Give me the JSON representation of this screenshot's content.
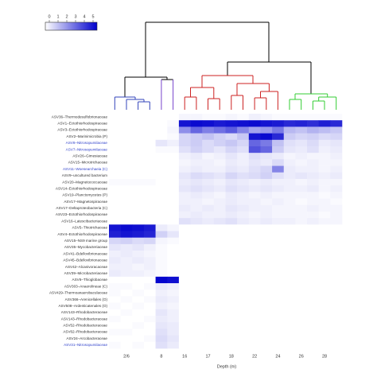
{
  "chart_data": {
    "type": "heatmap",
    "x_label": "Depth (m)",
    "columns": [
      null,
      "2/6",
      null,
      null,
      "8",
      null,
      "16",
      null,
      "17",
      null,
      "18",
      null,
      "22",
      null,
      "24",
      null,
      "26",
      null,
      "28",
      null
    ],
    "rows": [
      "ASV36–Thermodesulfobrionaceae",
      "ASV1–Ectothiorhodospiraceae",
      "ASV3–Ectothiorhodospiraceae",
      "ASV2–Marinimicrobia (P)",
      "ASV8–Nitrosopumilaceae",
      "ASV7–Nitrosopumilaceae",
      "ASV26–Gimesiaceae",
      "ASV15–Microtrichaceae",
      "ASV11–Woesearchaeia (C)",
      "ASV9–uncultured bacterium",
      "ASV20–Magnetococcaceae",
      "ASV14–Ectothiorhodospiraceae",
      "ASV19–Planctomycetes (P)",
      "ASV17–Magnetospiraceae",
      "ASV17–Deltaproteobacteria (C)",
      "ASV23–Ectothiorhodospiraceae",
      "ASV16–Latescibacteriaceae",
      "ASV5–Thiotrichaceae",
      "ASV4–Ectothiorhodospiraceae",
      "ASV15–NS9 marine group",
      "ASV35–Mycobacteriaceae",
      "ASV41–Bdellovibrionaceae",
      "ASV45–Bdellovibrionaceae",
      "ASV42–Alcanivoracaceae",
      "ASV39–Microbacteriaceae",
      "ASV6–Thioglobaceae",
      "ASV303–Anaerolineae (C)",
      "ASV429–Thermoanaerobaculaceae",
      "ASV366–Arenicellales (O)",
      "ASV508–Ardenticatenales (O)",
      "ASV143–Rhodobacteraceae",
      "ASV143–Rhodobacteraceae",
      "ASV52–Rhodobacteraceae",
      "ASV62–Rhodobacteraceae",
      "ASV24–Arcobacteraceae",
      "ASV31–Nitrosopumilaceae"
    ],
    "row_label_colors": [
      "#333333",
      "#333333",
      "#333333",
      "#333333",
      "#3344cc",
      "#3344cc",
      "#333333",
      "#333333",
      "#3344cc",
      "#333333",
      "#333333",
      "#333333",
      "#333333",
      "#333333",
      "#333333",
      "#333333",
      "#333333",
      "#333333",
      "#333333",
      "#333333",
      "#333333",
      "#333333",
      "#333333",
      "#333333",
      "#333333",
      "#333333",
      "#333333",
      "#333333",
      "#333333",
      "#333333",
      "#333333",
      "#333333",
      "#333333",
      "#333333",
      "#333333",
      "#3344cc"
    ],
    "values": [
      [
        0,
        0,
        0,
        0,
        0,
        0,
        0.2,
        0.2,
        0.1,
        0.1,
        0.2,
        0.1,
        0.3,
        0.2,
        0.1,
        0.1,
        0.1,
        0.1,
        0.1,
        0.1
      ],
      [
        0,
        0,
        0,
        0,
        0,
        0.1,
        4.6,
        4.8,
        4.7,
        4.5,
        4.6,
        4.7,
        4.8,
        4.6,
        4.5,
        4.2,
        4.3,
        4.1,
        4.4,
        4.2
      ],
      [
        0,
        0,
        0,
        0,
        0,
        0.2,
        2.2,
        3.0,
        2.5,
        2.8,
        3.2,
        2.4,
        1.8,
        2.0,
        2.6,
        1.4,
        1.2,
        1.5,
        1.3,
        1.1
      ],
      [
        0,
        0,
        0,
        0,
        0,
        0.1,
        0.8,
        1.0,
        1.2,
        0.9,
        0.7,
        1.1,
        4.6,
        4.8,
        4.2,
        1.0,
        0.8,
        0.9,
        0.7,
        0.8
      ],
      [
        0,
        0,
        0,
        0,
        0.5,
        0.3,
        0.8,
        1.0,
        0.7,
        0.9,
        1.1,
        0.8,
        3.0,
        2.6,
        1.2,
        0.6,
        0.5,
        0.7,
        0.4,
        0.5
      ],
      [
        0,
        0,
        0,
        0,
        0.1,
        0.1,
        0.6,
        0.9,
        0.7,
        0.5,
        0.8,
        0.6,
        3.4,
        3.0,
        1.0,
        0.5,
        0.4,
        0.6,
        0.3,
        0.4
      ],
      [
        0,
        0,
        0,
        0,
        0,
        0,
        0.3,
        0.4,
        0.2,
        0.3,
        0.5,
        0.3,
        0.6,
        0.5,
        0.4,
        0.2,
        0.3,
        0.2,
        0.2,
        0.3
      ],
      [
        0,
        0,
        0,
        0,
        0,
        0,
        0.2,
        0.3,
        0.3,
        0.2,
        0.4,
        0.3,
        0.5,
        0.4,
        0.7,
        0.3,
        0.2,
        0.3,
        0.2,
        0.2
      ],
      [
        0,
        0,
        0,
        0,
        0,
        0,
        0.3,
        0.4,
        0.3,
        0.3,
        0.5,
        0.4,
        0.6,
        0.8,
        2.4,
        0.4,
        0.3,
        0.3,
        0.2,
        0.3
      ],
      [
        0,
        0,
        0,
        0,
        0,
        0,
        0.5,
        0.7,
        0.6,
        0.5,
        0.8,
        0.6,
        0.7,
        0.9,
        0.6,
        0.4,
        0.5,
        0.4,
        0.3,
        0.4
      ],
      [
        0.1,
        0.1,
        0.1,
        0.1,
        0,
        0,
        0.4,
        0.5,
        0.4,
        0.3,
        0.5,
        0.4,
        0.3,
        0.4,
        0.3,
        0.3,
        0.2,
        0.3,
        0.2,
        0.2
      ],
      [
        0,
        0,
        0,
        0,
        0,
        0,
        0.5,
        0.6,
        0.5,
        0.4,
        0.6,
        0.5,
        0.4,
        0.5,
        0.4,
        0.3,
        0.3,
        0.4,
        0.2,
        0.3
      ],
      [
        0,
        0,
        0,
        0,
        0,
        0,
        0.3,
        0.4,
        0.3,
        0.2,
        0.4,
        0.3,
        0.2,
        0.3,
        0.2,
        0.2,
        0.2,
        0.2,
        0.1,
        0.2
      ],
      [
        0,
        0,
        0,
        0,
        0,
        0,
        0.3,
        0.3,
        0.2,
        0.3,
        0.4,
        0.3,
        0.3,
        0.2,
        0.3,
        0.2,
        0.1,
        0.2,
        0.2,
        0.1
      ],
      [
        0,
        0,
        0,
        0,
        0,
        0,
        0.4,
        0.3,
        0.4,
        0.3,
        0.5,
        0.4,
        0.3,
        0.3,
        0.2,
        0.2,
        0.2,
        0.3,
        0.2,
        0.2
      ],
      [
        0,
        0,
        0,
        0,
        0,
        0,
        0.3,
        0.4,
        0.3,
        0.3,
        0.4,
        0.3,
        0.2,
        0.3,
        0.2,
        0.2,
        0.2,
        0.2,
        0.1,
        0.2
      ],
      [
        0,
        0,
        0,
        0,
        0,
        0,
        0.6,
        0.5,
        0.4,
        0.5,
        0.6,
        0.4,
        0.3,
        0.4,
        0.3,
        0.3,
        0.2,
        0.3,
        0.2,
        0.2
      ],
      [
        4.6,
        4.8,
        4.7,
        4.5,
        0.4,
        0.2,
        0,
        0,
        0,
        0,
        0,
        0,
        0,
        0,
        0,
        0,
        0,
        0,
        0,
        0
      ],
      [
        4.4,
        4.6,
        4.5,
        4.3,
        0.9,
        0.5,
        0,
        0,
        0,
        0,
        0,
        0,
        0,
        0,
        0,
        0,
        0,
        0,
        0,
        0
      ],
      [
        0.8,
        0.9,
        0.7,
        0.8,
        0.2,
        0.1,
        0,
        0,
        0,
        0,
        0,
        0,
        0,
        0,
        0,
        0,
        0,
        0,
        0,
        0
      ],
      [
        0.5,
        0.4,
        0.5,
        0.3,
        0.1,
        0,
        0,
        0,
        0,
        0,
        0,
        0,
        0,
        0,
        0,
        0,
        0,
        0,
        0,
        0
      ],
      [
        0.3,
        0.4,
        0.3,
        0.2,
        0.1,
        0,
        0,
        0,
        0,
        0,
        0,
        0,
        0,
        0,
        0,
        0,
        0,
        0,
        0,
        0
      ],
      [
        0.4,
        0.3,
        0.4,
        0.3,
        0.1,
        0,
        0,
        0,
        0,
        0,
        0,
        0,
        0,
        0,
        0,
        0,
        0,
        0,
        0,
        0
      ],
      [
        0.3,
        0.3,
        0.2,
        0.3,
        0.1,
        0,
        0,
        0,
        0,
        0,
        0,
        0,
        0,
        0,
        0,
        0,
        0,
        0,
        0,
        0
      ],
      [
        0.4,
        0.3,
        0.3,
        0.2,
        0.1,
        0,
        0,
        0,
        0,
        0,
        0,
        0,
        0,
        0,
        0,
        0,
        0,
        0,
        0,
        0
      ],
      [
        0,
        0,
        0,
        0,
        4.9,
        4.7,
        0,
        0,
        0,
        0,
        0,
        0,
        0,
        0,
        0,
        0,
        0,
        0,
        0,
        0
      ],
      [
        0.1,
        0.1,
        0,
        0.1,
        0.4,
        0.3,
        0,
        0,
        0,
        0,
        0,
        0,
        0,
        0,
        0,
        0,
        0,
        0,
        0,
        0
      ],
      [
        0.1,
        0,
        0.1,
        0,
        0.3,
        0.2,
        0,
        0,
        0,
        0,
        0,
        0,
        0,
        0,
        0,
        0,
        0,
        0,
        0,
        0
      ],
      [
        0,
        0.1,
        0,
        0.1,
        0.4,
        0.3,
        0,
        0,
        0,
        0,
        0,
        0,
        0,
        0,
        0,
        0,
        0,
        0,
        0,
        0
      ],
      [
        0.1,
        0,
        0.1,
        0,
        0.3,
        0.2,
        0,
        0,
        0,
        0,
        0,
        0,
        0,
        0,
        0,
        0,
        0,
        0,
        0,
        0
      ],
      [
        0,
        0.1,
        0,
        0,
        0.5,
        0.3,
        0,
        0,
        0,
        0,
        0,
        0,
        0,
        0,
        0,
        0,
        0,
        0,
        0,
        0
      ],
      [
        0.1,
        0,
        0,
        0.1,
        0.4,
        0.3,
        0,
        0,
        0,
        0,
        0,
        0,
        0,
        0,
        0,
        0,
        0,
        0,
        0,
        0
      ],
      [
        0,
        0,
        0.1,
        0,
        0.5,
        0.4,
        0,
        0,
        0,
        0,
        0,
        0,
        0,
        0,
        0,
        0,
        0,
        0,
        0,
        0
      ],
      [
        0.1,
        0.1,
        0,
        0,
        0.6,
        0.4,
        0,
        0,
        0,
        0,
        0,
        0,
        0,
        0,
        0,
        0,
        0,
        0,
        0,
        0
      ],
      [
        0,
        0,
        0,
        0.1,
        0.7,
        0.5,
        0,
        0,
        0,
        0,
        0,
        0,
        0,
        0,
        0,
        0,
        0,
        0,
        0,
        0
      ],
      [
        0.1,
        0,
        0.1,
        0,
        0.6,
        0.4,
        0,
        0,
        0,
        0,
        0,
        0,
        0,
        0,
        0,
        0,
        0,
        0,
        0,
        0
      ]
    ],
    "zlim": [
      0,
      5
    ],
    "colorbar_ticks": [
      0,
      1,
      2,
      3,
      4,
      5
    ],
    "colormap": [
      "#ffffff",
      "#0000cd"
    ]
  }
}
